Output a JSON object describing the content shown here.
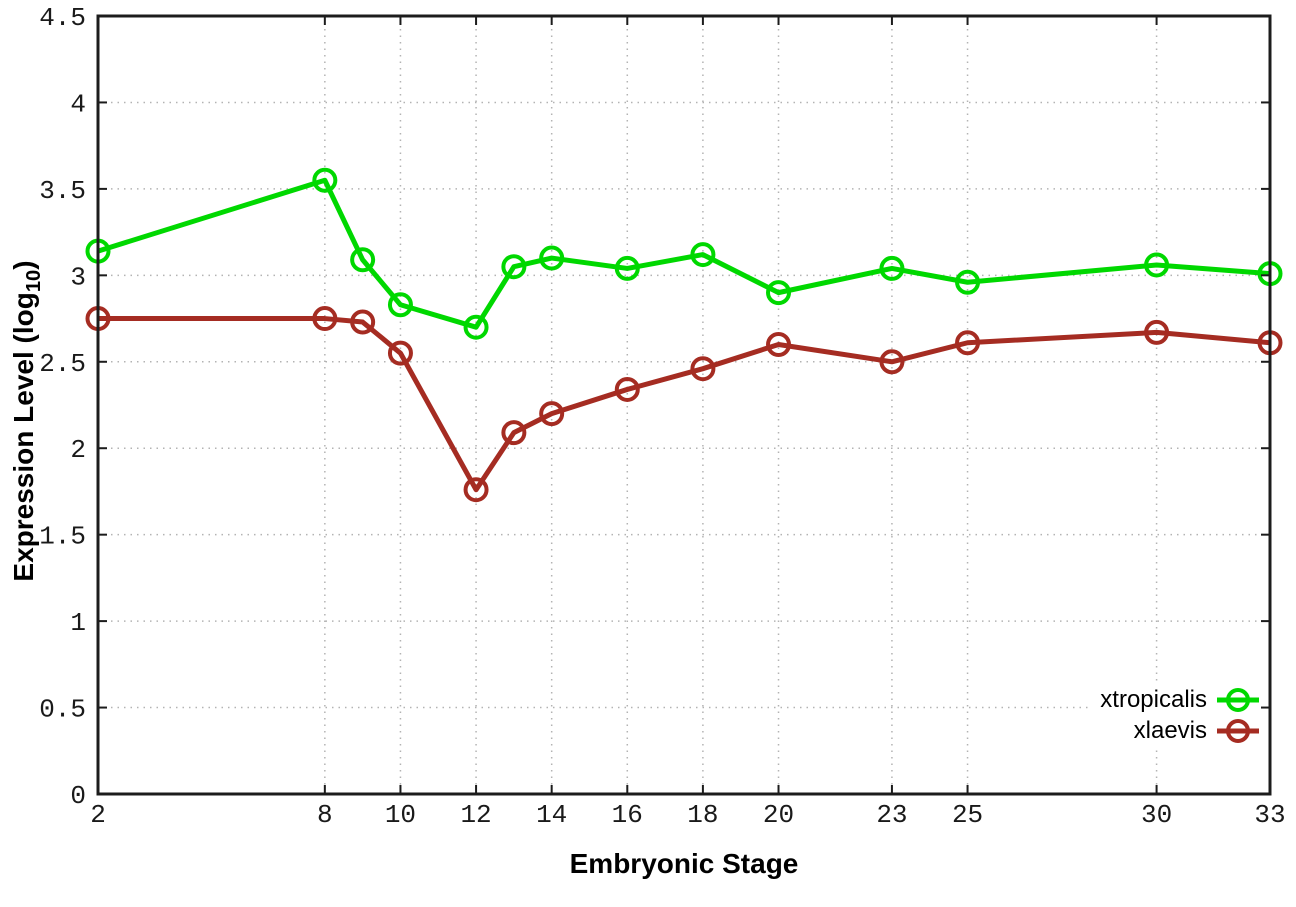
{
  "chart_data": {
    "type": "line",
    "title": "",
    "xlabel": "Embryonic Stage",
    "ylabel": "Expression Level (log10)",
    "ylabel_parts": {
      "pre": "Expression Level (log",
      "sub": "10",
      "post": ")"
    },
    "x": [
      2,
      8,
      9,
      10,
      12,
      13,
      14,
      16,
      18,
      20,
      23,
      25,
      30,
      33
    ],
    "series": [
      {
        "name": "xtropicalis",
        "color": "#00d800",
        "values": [
          3.14,
          3.55,
          3.09,
          2.83,
          2.7,
          3.05,
          3.1,
          3.04,
          3.12,
          2.9,
          3.04,
          2.96,
          3.06,
          3.01
        ]
      },
      {
        "name": "xlaevis",
        "color": "#a52c22",
        "values": [
          2.75,
          2.75,
          2.73,
          2.55,
          1.76,
          2.09,
          2.2,
          2.34,
          2.46,
          2.6,
          2.5,
          2.61,
          2.67,
          2.61
        ]
      }
    ],
    "xlim": [
      2,
      33
    ],
    "ylim": [
      0,
      4.5
    ],
    "xticks": [
      2,
      8,
      10,
      12,
      14,
      16,
      18,
      20,
      23,
      25,
      30,
      33
    ],
    "xtick_labels": [
      "2",
      "8",
      "10",
      "12",
      "14",
      "16",
      "18",
      "20",
      "23",
      "25",
      "30",
      "33"
    ],
    "yticks": [
      0,
      0.5,
      1,
      1.5,
      2,
      2.5,
      3,
      3.5,
      4,
      4.5
    ],
    "ytick_labels": [
      "0",
      "0.5",
      "1",
      "1.5",
      "2",
      "2.5",
      "3",
      "3.5",
      "4",
      "4.5"
    ],
    "grid": true,
    "grid_style": "dotted",
    "legend_position": "bottom-right",
    "marker": "open-circle",
    "background": "#ffffff",
    "grid_color": "#b3b3b3",
    "axis_color": "#1c1c1c",
    "text_color": "#1a1a1a"
  }
}
